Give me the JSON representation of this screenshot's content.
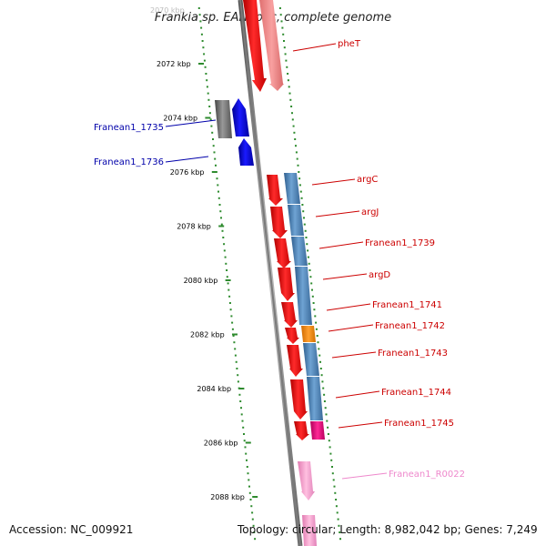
{
  "title": "Frankia sp. EAN1pec, complete genome",
  "scale_top_label": "2070 kbp",
  "scale_labels": [
    {
      "text": "2072 kbp",
      "kbp": 2072
    },
    {
      "text": "2074 kbp",
      "kbp": 2074
    },
    {
      "text": "2076 kbp",
      "kbp": 2076
    },
    {
      "text": "2078 kbp",
      "kbp": 2078
    },
    {
      "text": "2080 kbp",
      "kbp": 2080
    },
    {
      "text": "2082 kbp",
      "kbp": 2082
    },
    {
      "text": "2084 kbp",
      "kbp": 2084
    },
    {
      "text": "2086 kbp",
      "kbp": 2086
    },
    {
      "text": "2088 kbp",
      "kbp": 2088
    }
  ],
  "genes_left": [
    {
      "name": "Franean1_1735",
      "color": "#0000aa"
    },
    {
      "name": "Franean1_1736",
      "color": "#0000aa"
    }
  ],
  "genes_right": [
    {
      "name": "pheT",
      "color": "#cc0000"
    },
    {
      "name": "argC",
      "color": "#cc0000"
    },
    {
      "name": "argJ",
      "color": "#cc0000"
    },
    {
      "name": "Franean1_1739",
      "color": "#cc0000"
    },
    {
      "name": "argD",
      "color": "#cc0000"
    },
    {
      "name": "Franean1_1741",
      "color": "#cc0000"
    },
    {
      "name": "Franean1_1742",
      "color": "#cc0000"
    },
    {
      "name": "Franean1_1743",
      "color": "#cc0000"
    },
    {
      "name": "Franean1_1744",
      "color": "#cc0000"
    },
    {
      "name": "Franean1_1745",
      "color": "#cc0000"
    },
    {
      "name": "Franean1_R0022",
      "color": "#ee88cc"
    }
  ],
  "colors": {
    "backbone": "#808080",
    "gc_ticks": "#2e8b2e",
    "forward_gene": "#ee0000",
    "reverse_gene": "#0000dd",
    "other_gene": "#707070",
    "cog_bar": "#4f86b8",
    "orange_feature": "#ff8c00",
    "magenta_feature": "#e0007a",
    "rna_feature": "#ff99cc"
  },
  "footer": {
    "accession": "Accession: NC_009921",
    "stats": "Topology: circular; Length: 8,982,042 bp; Genes: 7,249"
  }
}
